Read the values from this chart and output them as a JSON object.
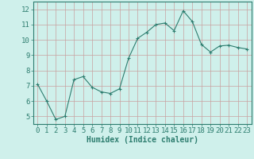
{
  "x": [
    0,
    1,
    2,
    3,
    4,
    5,
    6,
    7,
    8,
    9,
    10,
    11,
    12,
    13,
    14,
    15,
    16,
    17,
    18,
    19,
    20,
    21,
    22,
    23
  ],
  "y": [
    7.1,
    6.0,
    4.8,
    5.0,
    7.4,
    7.6,
    6.9,
    6.6,
    6.5,
    6.8,
    8.8,
    10.1,
    10.5,
    11.0,
    11.1,
    10.6,
    11.9,
    11.2,
    9.7,
    9.2,
    9.6,
    9.65,
    9.5,
    9.4
  ],
  "line_color": "#2d7d6f",
  "marker": "+",
  "marker_size": 3,
  "bg_color": "#cff0eb",
  "grid_color": "#c8a0a0",
  "xlabel": "Humidex (Indice chaleur)",
  "xlim": [
    -0.5,
    23.5
  ],
  "ylim": [
    4.5,
    12.5
  ],
  "yticks": [
    5,
    6,
    7,
    8,
    9,
    10,
    11,
    12
  ],
  "xticks": [
    0,
    1,
    2,
    3,
    4,
    5,
    6,
    7,
    8,
    9,
    10,
    11,
    12,
    13,
    14,
    15,
    16,
    17,
    18,
    19,
    20,
    21,
    22,
    23
  ],
  "xlabel_fontsize": 7,
  "tick_fontsize": 6.5,
  "label_color": "#2d7d6f",
  "spine_color": "#2d7d6f"
}
